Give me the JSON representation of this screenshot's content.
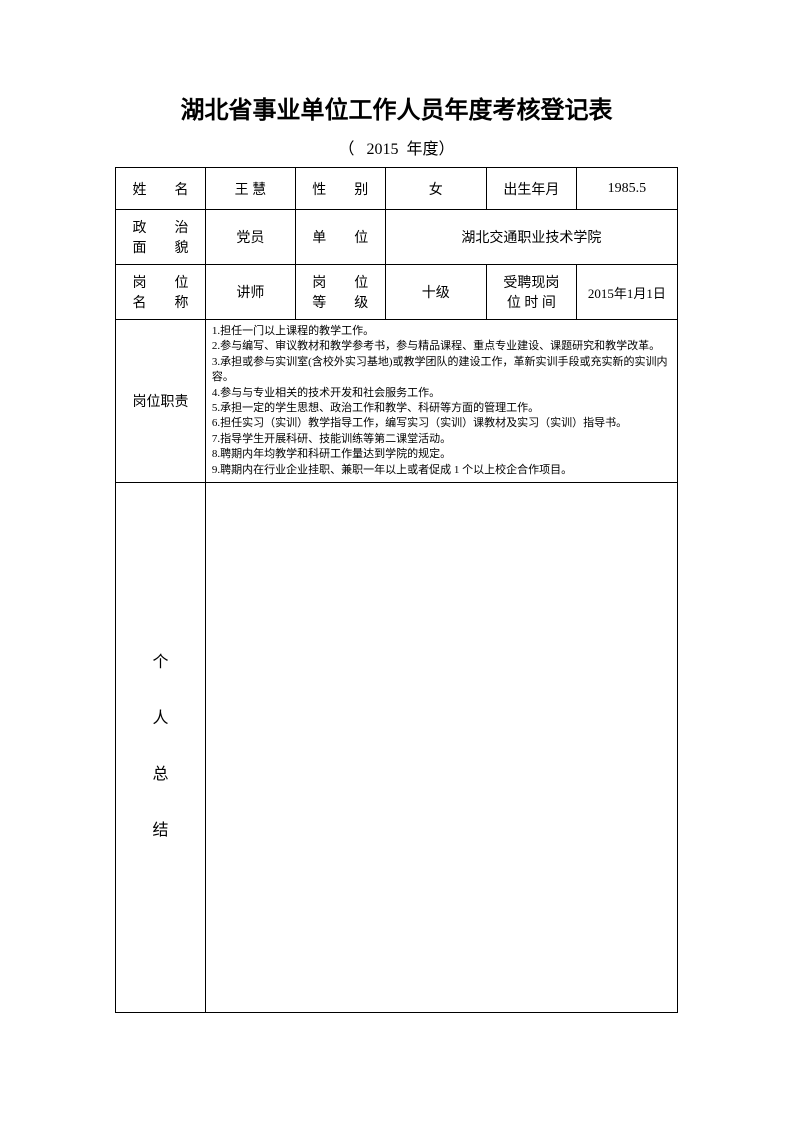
{
  "title": "湖北省事业单位工作人员年度考核登记表",
  "subtitle_prefix": "（",
  "subtitle_year": "2015",
  "subtitle_suffix": "年度）",
  "row1": {
    "name_label": "姓　　名",
    "name_value": "王 慧",
    "gender_label": "性　　别",
    "gender_value": "女",
    "birth_label": "出生年月",
    "birth_value": "1985.5"
  },
  "row2": {
    "political_label_l1": "政　　治",
    "political_label_l2": "面　　貌",
    "political_value": "党员",
    "unit_label": "单　　位",
    "unit_value": "湖北交通职业技术学院"
  },
  "row3": {
    "position_label_l1": "岗　　位",
    "position_label_l2": "名　　称",
    "position_value": "讲师",
    "level_label_l1": "岗　　位",
    "level_label_l2": "等　　级",
    "level_value": "十级",
    "hire_label_l1": "受聘现岗",
    "hire_label_l2": "位 时 间",
    "hire_value": "2015年1月1日"
  },
  "duties": {
    "label": "岗位职责",
    "items": [
      "1.担任一门以上课程的教学工作。",
      "2.参与编写、审议教材和教学参考书，参与精品课程、重点专业建设、课题研究和教学改革。",
      "3.承担或参与实训室(含校外实习基地)或教学团队的建设工作，革新实训手段或充实新的实训内容。",
      "4.参与与专业相关的技术开发和社会服务工作。",
      "5.承担一定的学生思想、政治工作和教学、科研等方面的管理工作。",
      "6.担任实习（实训）教学指导工作，编写实习（实训）课教材及实习（实训）指导书。",
      "7.指导学生开展科研、技能训练等第二课堂活动。",
      "8.聘期内年均教学和科研工作量达到学院的规定。",
      "9.聘期内在行业企业挂职、兼职一年以上或者促成 1 个以上校企合作项目。"
    ]
  },
  "summary": {
    "label_l1": "个",
    "label_l2": "人",
    "label_l3": "总",
    "label_l4": "结"
  }
}
